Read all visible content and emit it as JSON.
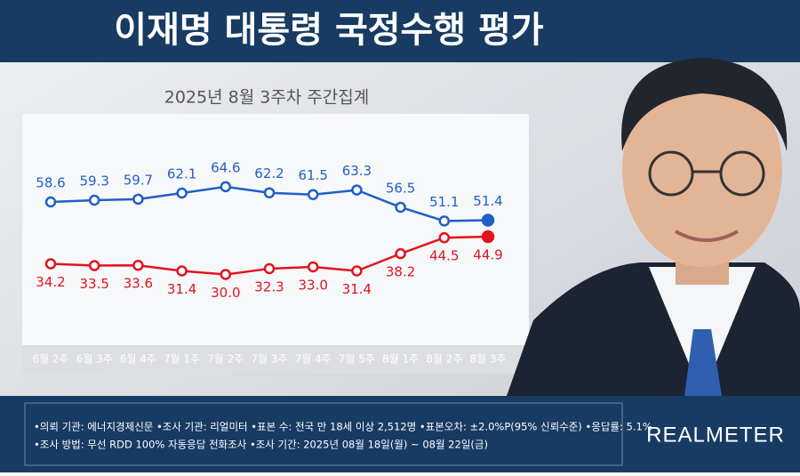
{
  "chart_data": {
    "type": "line",
    "title": "이재명 대통령 국정수행 평가",
    "subtitle": "2025년 8월 3주차 주간집계",
    "categories": [
      "6월 2주",
      "6월 3주",
      "6월 4주",
      "7월 1주",
      "7월 2주",
      "7월 3주",
      "7월 4주",
      "7월 5주",
      "8월 1주",
      "8월 2주",
      "8월 3주"
    ],
    "series": [
      {
        "color": "#1f5fc8",
        "values": [
          58.6,
          59.3,
          59.7,
          62.1,
          64.6,
          62.2,
          61.5,
          63.3,
          56.5,
          51.1,
          51.4
        ],
        "value_labels": [
          "58.6",
          "59.3",
          "59.7",
          "62.1",
          "64.6",
          "62.2",
          "61.5",
          "63.3",
          "56.5",
          "51.1",
          "51.4"
        ]
      },
      {
        "color": "#e0141e",
        "values": [
          34.2,
          33.5,
          33.6,
          31.4,
          30.0,
          32.3,
          33.0,
          31.4,
          38.2,
          44.5,
          44.9
        ],
        "value_labels": [
          "34.2",
          "33.5",
          "33.6",
          "31.4",
          "30.0",
          "32.3",
          "33.0",
          "31.4",
          "38.2",
          "44.5",
          "44.9"
        ]
      }
    ],
    "notes": [
      "•의뢰 기관: 에너지경제신문 •조사 기관: 리얼미터 •표본 수: 전국 만 18세 이상 2,512명 •표본오차: ±2.0%P(95% 신뢰수준) •응답률: 5.1%",
      "•조사 방법: 무선 RDD 100% 자동응답 전화조사 •조사 기간: 2025년 08월 18일(월) ~ 08월 22일(금)"
    ],
    "brand": "REALMETER"
  }
}
